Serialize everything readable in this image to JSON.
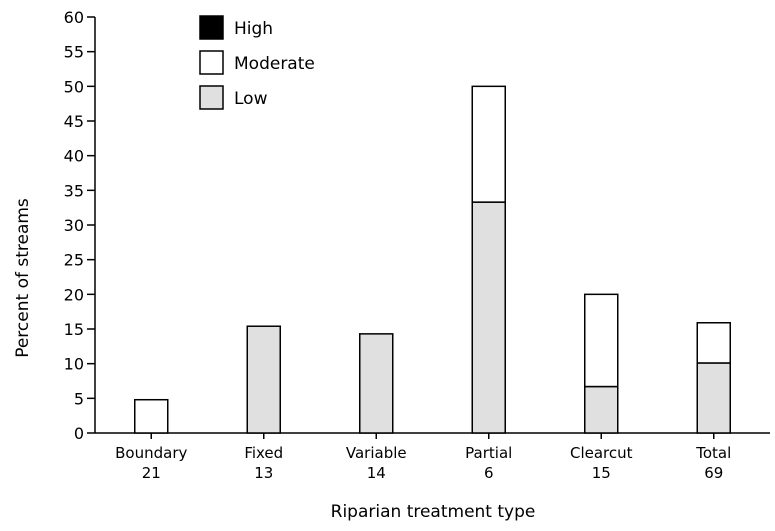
{
  "chart_data": {
    "type": "bar",
    "stacked": true,
    "title": "",
    "xlabel": "Riparian treatment type",
    "ylabel": "Percent of streams",
    "ylim": [
      0,
      60
    ],
    "ytick_step": 5,
    "categories": [
      {
        "name": "Boundary",
        "n": "21"
      },
      {
        "name": "Fixed",
        "n": "13"
      },
      {
        "name": "Variable",
        "n": "14"
      },
      {
        "name": "Partial",
        "n": "6"
      },
      {
        "name": "Clearcut",
        "n": "15"
      },
      {
        "name": "Total",
        "n": "69"
      }
    ],
    "series": [
      {
        "name": "Low",
        "color": "#e0e0e0",
        "values": [
          0,
          15.4,
          14.3,
          33.3,
          6.7,
          10.1
        ]
      },
      {
        "name": "Moderate",
        "color": "#ffffff",
        "values": [
          4.8,
          0,
          0,
          16.7,
          13.3,
          5.8
        ]
      },
      {
        "name": "High",
        "color": "#000000",
        "values": [
          0,
          0,
          0,
          0,
          0,
          0
        ]
      }
    ],
    "legend": {
      "placement": "top-left",
      "order": [
        "High",
        "Moderate",
        "Low"
      ]
    },
    "grid": false
  }
}
